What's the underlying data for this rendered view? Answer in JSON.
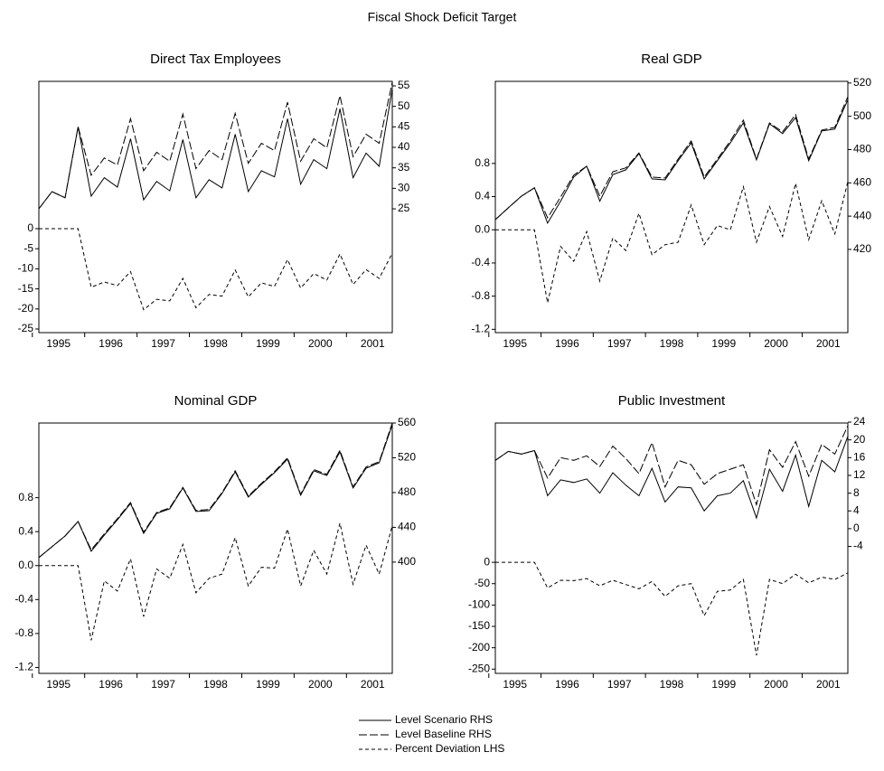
{
  "title": "Fiscal Shock Deficit Target",
  "chart_data": [
    {
      "type": "line",
      "title": "Direct Tax  Employees",
      "categories": [
        "1995",
        null,
        null,
        null,
        "1996",
        null,
        null,
        null,
        "1997",
        null,
        null,
        null,
        "1998",
        null,
        null,
        null,
        "1999",
        null,
        null,
        null,
        "2000",
        null,
        null,
        null,
        "2001",
        null,
        null,
        null
      ],
      "ylim": [
        -25.9,
        36.7
      ],
      "yticks": [
        0,
        -5,
        -10,
        -15,
        -20,
        -25
      ],
      "y2lim": [
        -5.2,
        56.1
      ],
      "y2ticks": [
        55,
        50,
        45,
        40,
        35,
        30,
        25
      ],
      "series": [
        {
          "name": "Level Scenario RHS",
          "color": "#000000",
          "style": "solid",
          "axis": "y2",
          "values": [
            25.0,
            29.2,
            27.7,
            45.0,
            28.1,
            32.6,
            30.3,
            42.1,
            27.2,
            31.7,
            29.4,
            41.9,
            27.7,
            32.1,
            30.1,
            43.2,
            29.2,
            34.3,
            32.8,
            47.0,
            31.0,
            37.0,
            34.8,
            49.4,
            32.6,
            38.6,
            35.4,
            54.3
          ]
        },
        {
          "name": "Level Baseline RHS",
          "color": "#000000",
          "style": "long-dash",
          "axis": "y2",
          "values": [
            25.0,
            29.2,
            27.7,
            45.0,
            33.2,
            37.4,
            35.7,
            47.0,
            34.3,
            38.8,
            36.6,
            48.1,
            34.8,
            39.2,
            37.0,
            48.3,
            36.1,
            41.0,
            39.2,
            51.0,
            36.6,
            42.1,
            39.9,
            52.6,
            37.7,
            43.2,
            41.0,
            55.9
          ]
        },
        {
          "name": "Percent Deviation LHS",
          "color": "#000000",
          "style": "short-dash",
          "values": [
            0,
            0,
            0,
            0,
            -14.6,
            -13.3,
            -14.2,
            -10.7,
            -20.2,
            -17.6,
            -18.0,
            -12.4,
            -19.7,
            -16.4,
            -16.8,
            -10.3,
            -17.0,
            -13.5,
            -14.4,
            -7.7,
            -14.8,
            -11.2,
            -12.8,
            -6.3,
            -13.9,
            -10.2,
            -12.4,
            -6.1
          ]
        }
      ]
    },
    {
      "type": "line",
      "title": "Real GDP",
      "categories": [
        "1995",
        null,
        null,
        null,
        "1996",
        null,
        null,
        null,
        "1997",
        null,
        null,
        null,
        "1998",
        null,
        null,
        null,
        "1999",
        null,
        null,
        null,
        "2000",
        null,
        null,
        null,
        "2001",
        null,
        null,
        null
      ],
      "ylim": [
        -1.24,
        1.79
      ],
      "yticks": [
        0.8,
        0.4,
        {
          "value": 0,
          "label": "0.0"
        },
        -0.4,
        -0.8,
        -1.2
      ],
      "y2lim": [
        370,
        521
      ],
      "y2ticks": [
        520,
        500,
        480,
        460,
        440,
        420
      ],
      "series": [
        {
          "color": "#000000",
          "style": "solid",
          "axis": "y2",
          "values": [
            437.9,
            445,
            452,
            457,
            435.8,
            449,
            463.5,
            470,
            449,
            465,
            467.8,
            477.6,
            462.4,
            461.8,
            473.3,
            484,
            462.4,
            473.3,
            484,
            496,
            473.8,
            495.5,
            489.6,
            499.3,
            473.3,
            491.2,
            492.3,
            510
          ]
        },
        {
          "color": "#000000",
          "style": "long-dash",
          "axis": "y2",
          "values": [
            437.9,
            445,
            452,
            457,
            439,
            451.5,
            464.6,
            470,
            452,
            466.7,
            469,
            478,
            463.5,
            462.9,
            474.3,
            485.2,
            463.5,
            474.3,
            485.2,
            497.7,
            474.3,
            496,
            490.7,
            501,
            474.3,
            491.7,
            493.4,
            511.8
          ]
        },
        {
          "color": "#000000",
          "style": "short-dash",
          "values": [
            0,
            0,
            0,
            0,
            -0.88,
            -0.2,
            -0.38,
            -0.02,
            -0.62,
            -0.1,
            -0.25,
            0.2,
            -0.3,
            -0.18,
            -0.15,
            0.3,
            -0.18,
            0.05,
            0.0,
            0.52,
            -0.15,
            0.28,
            -0.08,
            0.56,
            -0.12,
            0.35,
            -0.05,
            0.58
          ]
        }
      ]
    },
    {
      "type": "line",
      "title": "Nominal GDP",
      "categories": [
        "1995",
        null,
        null,
        null,
        "1996",
        null,
        null,
        null,
        "1997",
        null,
        null,
        null,
        "1998",
        null,
        null,
        null,
        "1999",
        null,
        null,
        null,
        "2000",
        null,
        null,
        null,
        "2001",
        null,
        null,
        null
      ],
      "ylim": [
        -1.27,
        1.68
      ],
      "yticks": [
        0.8,
        0.4,
        {
          "value": 0,
          "label": "0.0"
        },
        -0.4,
        -0.8,
        -1.2
      ],
      "y2lim": [
        272,
        560
      ],
      "y2ticks": [
        560,
        520,
        480,
        440,
        400
      ],
      "series": [
        {
          "color": "#000000",
          "style": "solid",
          "axis": "y2",
          "values": [
            405.2,
            417.7,
            430,
            446.8,
            412.5,
            431,
            448.8,
            467.5,
            433,
            456,
            461.3,
            485.2,
            458.2,
            459.2,
            479,
            503.9,
            474.8,
            489.4,
            502.9,
            518.4,
            476.9,
            505,
            499.7,
            526.8,
            485.2,
            508,
            514.3,
            558
          ]
        },
        {
          "color": "#000000",
          "style": "long-dash",
          "axis": "y2",
          "values": [
            405.2,
            417.7,
            430,
            446.8,
            414,
            432.5,
            450,
            468.5,
            434.5,
            457,
            462.5,
            486,
            459.5,
            460.5,
            480,
            505,
            476,
            490.5,
            504,
            520,
            478,
            506.5,
            501,
            528.5,
            486.5,
            509.5,
            515.5,
            560
          ]
        },
        {
          "color": "#000000",
          "style": "short-dash",
          "values": [
            0,
            0,
            0,
            0,
            -0.88,
            -0.18,
            -0.3,
            0.08,
            -0.6,
            -0.04,
            -0.15,
            0.25,
            -0.32,
            -0.15,
            -0.1,
            0.33,
            -0.24,
            -0.02,
            -0.03,
            0.43,
            -0.24,
            0.18,
            -0.1,
            0.5,
            -0.22,
            0.24,
            -0.1,
            0.47
          ]
        }
      ]
    },
    {
      "type": "line",
      "title": "Public Investment",
      "categories": [
        "1995",
        null,
        null,
        null,
        "1996",
        null,
        null,
        null,
        "1997",
        null,
        null,
        null,
        "1998",
        null,
        null,
        null,
        "1999",
        null,
        null,
        null,
        "2000",
        null,
        null,
        null,
        "2001",
        null,
        null,
        null
      ],
      "ylim": [
        -260,
        326
      ],
      "yticks": [
        0,
        -50,
        -100,
        -150,
        -200,
        -250
      ],
      "y2lim": [
        -32.6,
        23.8
      ],
      "y2ticks": [
        24,
        20,
        16,
        12,
        8,
        4,
        0,
        -4
      ],
      "series": [
        {
          "color": "#000000",
          "style": "solid",
          "axis": "y2",
          "values": [
            15.4,
            17.4,
            16.8,
            17.6,
            7.4,
            11,
            10.4,
            11.2,
            8,
            12.6,
            9.8,
            7.4,
            13.6,
            6,
            9.4,
            9.2,
            4,
            7.4,
            8,
            10.8,
            2.4,
            13.4,
            8.4,
            16.6,
            5,
            15.4,
            12.8,
            20.8
          ]
        },
        {
          "color": "#000000",
          "style": "long-dash",
          "axis": "y2",
          "values": [
            15.4,
            17.4,
            16.8,
            17.6,
            11.4,
            16,
            15.4,
            16.4,
            14,
            18.6,
            15.8,
            12.4,
            19.4,
            9.4,
            15.4,
            14.4,
            10,
            12.4,
            13.4,
            14.4,
            5.4,
            17.8,
            13.8,
            19.6,
            11.8,
            19,
            16.8,
            23.2
          ]
        },
        {
          "color": "#000000",
          "style": "short-dash",
          "values": [
            0,
            0,
            0,
            0,
            -60,
            -42,
            -43,
            -38,
            -55,
            -42,
            -52,
            -62,
            -45,
            -80,
            -55,
            -50,
            -125,
            -68,
            -65,
            -40,
            -218,
            -40,
            -50,
            -28,
            -48,
            -35,
            -40,
            -25
          ]
        }
      ]
    }
  ]
}
